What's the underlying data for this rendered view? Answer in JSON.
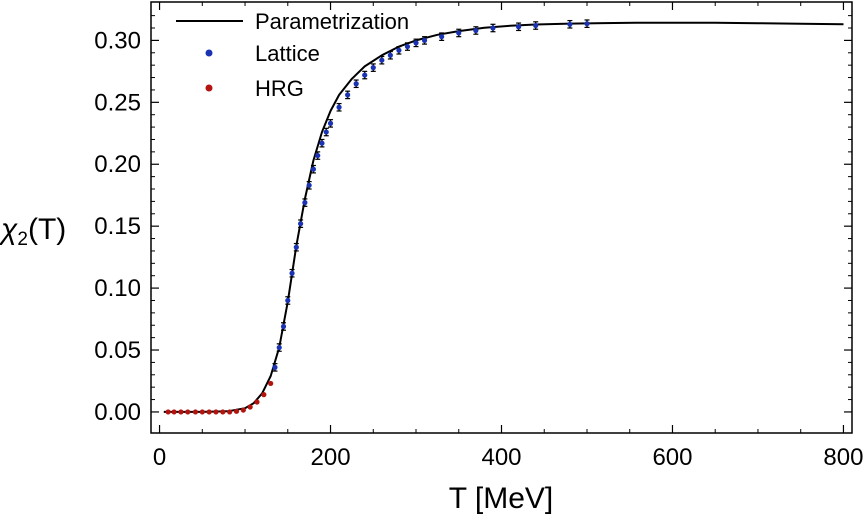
{
  "chart_data": {
    "type": "scatter",
    "title": "",
    "xlabel": "T [MeV]",
    "ylabel": {
      "prefix": "χ",
      "subscript": "2",
      "suffix": "(T)"
    },
    "xlim": [
      -10,
      810
    ],
    "ylim": [
      -0.017,
      0.331
    ],
    "xticks": [
      0,
      200,
      400,
      600,
      800
    ],
    "yticks": [
      0.0,
      0.05,
      0.1,
      0.15,
      0.2,
      0.25,
      0.3
    ],
    "xtick_labels": [
      "0",
      "200",
      "400",
      "600",
      "800"
    ],
    "ytick_labels": [
      "0.00",
      "0.05",
      "0.10",
      "0.15",
      "0.20",
      "0.25",
      "0.30"
    ],
    "legend_position": "top-left",
    "grid": false,
    "colors": {
      "parametrization": "#000000",
      "lattice": "#1a33b3",
      "hrg": "#b3140f"
    },
    "series": [
      {
        "name": "Parametrization",
        "kind": "line",
        "x": [
          5,
          50,
          80,
          100,
          110,
          120,
          130,
          140,
          150,
          160,
          170,
          180,
          190,
          200,
          210,
          225,
          240,
          260,
          280,
          300,
          325,
          350,
          380,
          410,
          440,
          480,
          520,
          560,
          600,
          650,
          700,
          750,
          800
        ],
        "y": [
          0.0,
          0.0,
          0.0005,
          0.003,
          0.007,
          0.015,
          0.029,
          0.052,
          0.089,
          0.134,
          0.172,
          0.203,
          0.226,
          0.243,
          0.256,
          0.269,
          0.279,
          0.288,
          0.295,
          0.3,
          0.3045,
          0.3075,
          0.3102,
          0.3118,
          0.3128,
          0.3136,
          0.314,
          0.3143,
          0.3143,
          0.3142,
          0.3139,
          0.3135,
          0.313
        ]
      },
      {
        "name": "Lattice",
        "kind": "points",
        "x": [
          135,
          140,
          145,
          150,
          155,
          160,
          165,
          170,
          175,
          180,
          185,
          190,
          195,
          200,
          210,
          220,
          230,
          240,
          250,
          260,
          270,
          280,
          290,
          300,
          310,
          330,
          350,
          370,
          390,
          420,
          440,
          480,
          500
        ],
        "y": [
          0.036,
          0.052,
          0.069,
          0.09,
          0.112,
          0.133,
          0.152,
          0.169,
          0.183,
          0.196,
          0.207,
          0.217,
          0.226,
          0.233,
          0.246,
          0.256,
          0.265,
          0.272,
          0.278,
          0.284,
          0.288,
          0.292,
          0.295,
          0.298,
          0.3,
          0.303,
          0.306,
          0.308,
          0.31,
          0.311,
          0.312,
          0.313,
          0.3135
        ],
        "err": [
          0.003,
          0.003,
          0.003,
          0.003,
          0.003,
          0.003,
          0.003,
          0.003,
          0.003,
          0.003,
          0.003,
          0.003,
          0.003,
          0.003,
          0.003,
          0.003,
          0.003,
          0.003,
          0.003,
          0.003,
          0.003,
          0.003,
          0.003,
          0.003,
          0.003,
          0.003,
          0.003,
          0.003,
          0.003,
          0.003,
          0.003,
          0.003,
          0.003
        ]
      },
      {
        "name": "HRG",
        "kind": "points",
        "x": [
          10,
          17,
          25,
          33,
          42,
          50,
          58,
          66,
          74,
          82,
          90,
          98,
          106,
          114,
          122,
          130
        ],
        "y": [
          0.0,
          0.0,
          0.0,
          0.0,
          0.0,
          0.0,
          0.0,
          0.0,
          0.0,
          0.0,
          0.0005,
          0.0015,
          0.004,
          0.008,
          0.014,
          0.023
        ]
      }
    ]
  }
}
